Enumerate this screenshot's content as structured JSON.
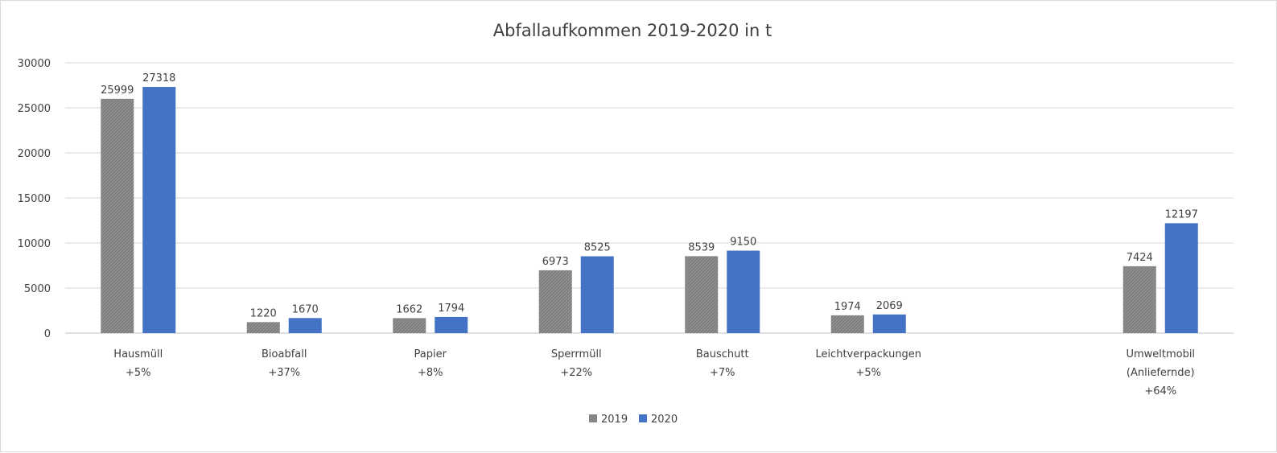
{
  "chart_data": {
    "type": "bar",
    "title": "Abfallaufkommen 2019-2020 in t",
    "categories": [
      [
        "Hausmüll",
        "+5%"
      ],
      [
        "Bioabfall",
        "+37%"
      ],
      [
        "Papier",
        "+8%"
      ],
      [
        "Sperrmüll",
        "+22%"
      ],
      [
        "Bauschutt",
        "+7%"
      ],
      [
        "Leichtverpackungen",
        "+5%"
      ],
      [],
      [
        "Umweltmobil",
        "(Anliefernde)",
        "+64%"
      ]
    ],
    "series": [
      {
        "name": "2019",
        "color": "#808080",
        "values": [
          25999,
          1220,
          1662,
          6973,
          8539,
          1974,
          null,
          7424
        ]
      },
      {
        "name": "2020",
        "color": "#4472c4",
        "values": [
          27318,
          1670,
          1794,
          8525,
          9150,
          2069,
          null,
          12197
        ]
      }
    ],
    "ylim": [
      0,
      30000
    ],
    "yticks": [
      "0",
      "5000",
      "10000",
      "15000",
      "20000",
      "25000",
      "30000"
    ],
    "grid": true,
    "legend_position": "bottom",
    "xlabel": "",
    "ylabel": ""
  }
}
